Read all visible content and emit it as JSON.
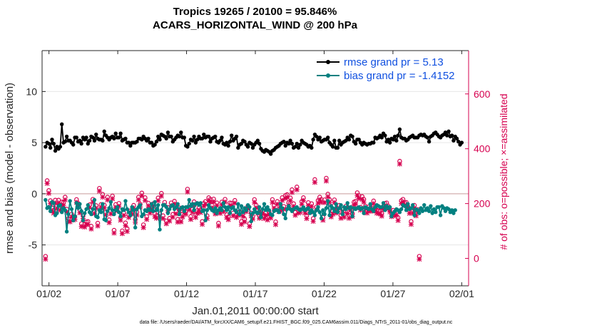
{
  "figure": {
    "title_line1": "Tropics 19265 / 20100 = 95.846%",
    "title_line2": "ACARS_HORIZONTAL_WIND @ 200 hPa",
    "footer": "data file: /Users/raeder/DAI/ATM_forcXX/CAM6_setup/f.e21.FHIST_BGC.f09_025.CAM6assim.011/Diags_NTrS_2011-01/obs_diag_output.nc"
  },
  "chart_data": {
    "type": "line",
    "xlabel": "Jan.01,2011 00:00:00 start",
    "ylabel_left": "rmse and bias (model - observation)",
    "ylabel_right": "# of obs: o=possible; ×=assimilated",
    "xlim_days": [
      0.5,
      31.5
    ],
    "ylim_left": [
      -9,
      14
    ],
    "ylim_right": [
      -100,
      758
    ],
    "x_ticks": [
      {
        "day": 1,
        "label": "01/02"
      },
      {
        "day": 6,
        "label": "01/07"
      },
      {
        "day": 11,
        "label": "01/12"
      },
      {
        "day": 16,
        "label": "01/17"
      },
      {
        "day": 21,
        "label": "01/22"
      },
      {
        "day": 26,
        "label": "01/27"
      },
      {
        "day": 31,
        "label": "02/01"
      }
    ],
    "y_ticks_left": [
      {
        "v": -5,
        "label": "-5"
      },
      {
        "v": 0,
        "label": "0"
      },
      {
        "v": 5,
        "label": "5"
      },
      {
        "v": 10,
        "label": "10"
      }
    ],
    "y_ticks_right": [
      {
        "v": 0,
        "label": "0"
      },
      {
        "v": 200,
        "label": "200"
      },
      {
        "v": 400,
        "label": "400"
      },
      {
        "v": 600,
        "label": "600"
      }
    ],
    "legend": [
      "rmse grand pr = 5.13",
      "bias grand pr = -1.4152"
    ],
    "legend_position": "top-right",
    "colors": {
      "rmse": "#000000",
      "bias": "#008080",
      "obs": "#d6004f",
      "zero_line": "#d4b0b0",
      "legend_text": "#1050e0"
    },
    "series": [
      {
        "name": "rmse",
        "values": [
          4.6,
          5.0,
          4.9,
          4.5,
          5.3,
          4.9,
          4.2,
          4.6,
          4.4,
          4.6,
          6.8,
          5.0,
          5.1,
          5.6,
          5.2,
          5.2,
          5.0,
          4.8,
          5.5,
          5.5,
          5.1,
          5.2,
          4.9,
          5.5,
          5.3,
          5.5,
          4.9,
          5.2,
          5.6,
          5.5,
          5.2,
          5.8,
          5.4,
          5.3,
          5.3,
          5.2,
          6.1,
          5.7,
          5.5,
          5.3,
          5.5,
          5.6,
          5.4,
          5.9,
          5.5,
          5.5,
          5.9,
          5.2,
          5.3,
          5.4,
          5.0,
          5.0,
          4.7,
          5.0,
          5.0,
          5.0,
          5.1,
          5.4,
          5.4,
          5.3,
          5.6,
          5.4,
          5.2,
          5.4,
          5.0,
          5.0,
          4.7,
          4.8,
          5.1,
          5.6,
          5.3,
          5.8,
          5.7,
          5.6,
          5.4,
          6.0,
          5.6,
          5.6,
          5.1,
          5.3,
          5.5,
          5.7,
          5.6,
          6.0,
          5.5,
          5.5,
          4.7,
          4.6,
          4.9,
          5.3,
          5.2,
          5.6,
          5.0,
          5.3,
          5.6,
          5.4,
          5.4,
          5.8,
          5.5,
          5.6,
          5.6,
          5.1,
          5.4,
          5.5,
          5.6,
          5.1,
          5.0,
          5.2,
          5.5,
          4.9,
          4.8,
          5.0,
          4.7,
          5.1,
          5.7,
          5.2,
          5.4,
          5.6,
          4.5,
          4.8,
          4.9,
          5.2,
          5.1,
          4.8,
          4.6,
          5.0,
          4.9,
          4.5,
          4.8,
          5.0,
          5.2,
          4.9,
          4.4,
          4.2,
          4.1,
          4.3,
          4.2,
          4.1,
          3.9,
          4.2,
          4.3,
          4.5,
          4.6,
          4.7,
          4.9,
          5.0,
          5.1,
          4.7,
          5.0,
          4.9,
          5.2,
          4.9,
          4.5,
          4.6,
          4.9,
          4.5,
          4.8,
          5.2,
          5.0,
          4.9,
          4.8,
          4.6,
          4.7,
          4.5,
          5.3,
          5.8,
          5.6,
          5.3,
          5.5,
          5.1,
          5.2,
          5.3,
          5.3,
          5.5,
          5.0,
          4.8,
          4.6,
          5.2,
          4.5,
          4.5,
          5.2,
          4.8,
          5.0,
          5.1,
          5.2,
          5.5,
          5.3,
          5.7,
          5.6,
          5.1,
          4.9,
          5.3,
          5.3,
          5.0,
          4.8,
          5.0,
          4.9,
          4.8,
          4.9,
          4.9,
          5.0,
          5.0,
          5.5,
          5.4,
          5.5,
          5.7,
          5.5,
          5.9,
          5.7,
          5.1,
          5.3,
          5.0,
          5.4,
          5.3,
          5.6,
          5.2,
          5.7,
          6.3,
          5.5,
          5.4,
          5.4,
          5.2,
          5.3,
          5.5,
          5.6,
          5.7,
          5.5,
          5.5,
          5.5,
          5.7,
          5.8,
          5.7,
          5.8,
          5.6,
          5.5,
          5.1,
          5.6,
          5.7,
          5.9,
          6.0,
          5.8,
          5.6,
          5.5,
          5.7,
          5.8,
          6.0,
          5.7,
          6.1,
          5.6,
          5.7,
          5.2,
          5.6,
          5.4,
          5.1,
          4.8,
          5.0
        ]
      },
      {
        "name": "bias",
        "values": [
          -0.6,
          -1.4,
          -1.3,
          -1.7,
          -0.8,
          -0.9,
          -2.1,
          -1.9,
          -1.2,
          -1.1,
          -1.8,
          -1.4,
          -1.6,
          -3.7,
          -2.0,
          -0.7,
          -1.5,
          -2.6,
          -2.2,
          -0.9,
          -1.4,
          -1.0,
          -1.7,
          -2.6,
          -1.9,
          -1.5,
          -1.1,
          -1.8,
          -2.0,
          -1.5,
          -0.6,
          -2.2,
          -2.3,
          -1.6,
          -1.8,
          -1.0,
          -2.5,
          -2.6,
          -1.7,
          -1.4,
          -0.8,
          -1.6,
          -2.0,
          -1.6,
          -1.3,
          -1.8,
          -2.2,
          -1.5,
          -1.6,
          -0.7,
          -1.5,
          -1.8,
          -2.1,
          -1.3,
          -1.6,
          -3.3,
          -1.5,
          -1.3,
          -1.1,
          -2.2,
          -2.0,
          -1.6,
          -1.7,
          -1.5,
          -1.6,
          -1.0,
          -1.7,
          -0.8,
          -1.6,
          -1.1,
          -3.5,
          -1.6,
          -1.1,
          -1.1,
          -1.3,
          -1.9,
          -1.5,
          -1.2,
          -1.1,
          -1.5,
          -1.3,
          -1.0,
          -2.0,
          -1.4,
          -1.3,
          -1.7,
          -1.3,
          -1.3,
          -0.6,
          -1.2,
          -1.0,
          -1.6,
          -1.0,
          -0.9,
          -1.1,
          -0.9,
          -1.7,
          -1.6,
          -2.6,
          -1.6,
          -1.1,
          -1.4,
          -1.6,
          -1.7,
          -1.4,
          -1.9,
          -1.6,
          -1.4,
          -1.6,
          -0.9,
          -1.3,
          -1.6,
          -1.3,
          -1.9,
          -1.4,
          -1.3,
          -1.6,
          -1.8,
          -1.0,
          -2.0,
          -1.2,
          -1.8,
          -1.4,
          -1.6,
          -1.1,
          -1.3,
          -2.7,
          -1.9,
          -1.5,
          -1.8,
          -1.9,
          -1.3,
          -2.3,
          -1.5,
          -1.0,
          -1.6,
          -1.3,
          -1.6,
          -2.0,
          -2.1,
          -1.7,
          -1.6,
          -1.6,
          -1.8,
          -1.0,
          -1.4,
          -2.0,
          -2.4,
          -1.5,
          -1.2,
          -1.5,
          -1.7,
          -1.5,
          -1.4,
          -1.3,
          -1.5,
          -1.6,
          -1.5,
          -1.3,
          -1.6,
          -1.5,
          -1.4,
          -1.9,
          -1.6,
          -1.8,
          -2.1,
          -1.6,
          -1.3,
          -1.8,
          -2.4,
          -1.6,
          -2.0,
          -1.4,
          -0.7,
          -2.1,
          -1.2,
          -1.4,
          -1.7,
          -1.0,
          -1.8,
          -1.4,
          -1.1,
          -2.0,
          -1.3,
          -1.5,
          -0.9,
          -1.4,
          -1.3,
          -2.2,
          -1.4,
          -1.5,
          -1.4,
          -1.3,
          -1.5,
          -1.4,
          -1.9,
          -1.3,
          -1.4,
          -1.5,
          -1.0,
          -1.5,
          -1.7,
          -1.3,
          -1.1,
          -1.2,
          -1.3,
          -1.3,
          -0.9,
          -1.6,
          -1.2,
          -1.4,
          -1.3,
          -2.2,
          -1.9,
          -1.7,
          -1.5,
          -1.6,
          -1.8,
          -1.5,
          -1.1,
          -1.2,
          -1.6,
          -1.0,
          -1.5,
          -1.4,
          -1.1,
          -2.1,
          -1.5,
          -1.6,
          -1.9,
          -1.4,
          -1.7,
          -1.1,
          -1.6,
          -1.4,
          -1.7,
          -1.2,
          -1.9,
          -1.5,
          -1.8,
          -1.3,
          -1.3,
          -2.1,
          -1.2,
          -1.4,
          -1.7,
          -1.4,
          -1.5,
          -1.8,
          -1.6,
          -1.9,
          -1.6
        ]
      },
      {
        "name": "obs_possible",
        "values": [
          0,
          276,
          240,
          203,
          176,
          168,
          205,
          184,
          205,
          178,
          198,
          196,
          216,
          172,
          138,
          136,
          154,
          143,
          145,
          207,
          193,
          169,
          119,
          148,
          117,
          126,
          127,
          188,
          110,
          208,
          166,
          185,
          121,
          248,
          189,
          226,
          187,
          161,
          216,
          133,
          165,
          220,
          95,
          189,
          176,
          193,
          142,
          93,
          159,
          122,
          101,
          152,
          166,
          164,
          186,
          135,
          161,
          216,
          190,
          231,
          115,
          214,
          145,
          194,
          168,
          179,
          192,
          155,
          149,
          213,
          155,
          230,
          148,
          197,
          129,
          178,
          139,
          195,
          153,
          201,
          165,
          135,
          177,
          136,
          154,
          170,
          164,
          245,
          180,
          145,
          171,
          199,
          152,
          167,
          177,
          170,
          127,
          193,
          200,
          148,
          214,
          208,
          187,
          209,
          165,
          195,
          121,
          167,
          198,
          173,
          208,
          152,
          144,
          195,
          194,
          158,
          204,
          152,
          160,
          163,
          127,
          156,
          136,
          173,
          184,
          119,
          158,
          146,
          207,
          187,
          167,
          149,
          162,
          167,
          148,
          159,
          143,
          163,
          150,
          207,
          186,
          126,
          200,
          173,
          175,
          214,
          182,
          222,
          225,
          196,
          213,
          243,
          192,
          160,
          253,
          168,
          171,
          200,
          214,
          168,
          148,
          196,
          171,
          192,
          138,
          280,
          180,
          204,
          216,
          207,
          142,
          206,
          285,
          227,
          207,
          154,
          164,
          206,
          168,
          174,
          186,
          149,
          171,
          153,
          183,
          166,
          149,
          178,
          156,
          198,
          201,
          232,
          221,
          179,
          218,
          208,
          183,
          168,
          180,
          175,
          175,
          202,
          176,
          168,
          166,
          165,
          157,
          182,
          193,
          195,
          183,
          172,
          155,
          168,
          158,
          160,
          141,
          347,
          203,
          208,
          196,
          197,
          182,
          167,
          127,
          167,
          186,
          158,
          171,
          0
        ]
      },
      {
        "name": "obs_assimilated",
        "values": [
          0,
          276,
          240,
          203,
          176,
          168,
          205,
          184,
          205,
          178,
          198,
          196,
          216,
          172,
          138,
          136,
          154,
          143,
          145,
          207,
          193,
          169,
          119,
          148,
          117,
          126,
          127,
          188,
          110,
          208,
          166,
          185,
          121,
          248,
          189,
          226,
          187,
          161,
          216,
          133,
          165,
          220,
          95,
          189,
          176,
          193,
          142,
          93,
          159,
          122,
          101,
          152,
          166,
          164,
          186,
          135,
          161,
          216,
          190,
          231,
          115,
          214,
          145,
          194,
          168,
          179,
          192,
          155,
          149,
          213,
          155,
          230,
          148,
          197,
          129,
          178,
          139,
          195,
          153,
          201,
          165,
          135,
          177,
          136,
          154,
          170,
          164,
          245,
          180,
          145,
          171,
          199,
          152,
          167,
          177,
          170,
          127,
          193,
          200,
          148,
          214,
          208,
          187,
          209,
          165,
          195,
          121,
          167,
          198,
          173,
          208,
          152,
          144,
          195,
          194,
          158,
          204,
          152,
          160,
          163,
          127,
          156,
          136,
          173,
          184,
          119,
          158,
          146,
          207,
          187,
          167,
          149,
          162,
          167,
          148,
          159,
          143,
          163,
          150,
          207,
          186,
          126,
          200,
          173,
          175,
          214,
          182,
          222,
          225,
          196,
          213,
          243,
          192,
          160,
          253,
          168,
          171,
          200,
          214,
          168,
          148,
          196,
          171,
          192,
          138,
          280,
          180,
          204,
          216,
          207,
          142,
          206,
          285,
          227,
          207,
          154,
          164,
          206,
          168,
          174,
          186,
          149,
          171,
          153,
          183,
          166,
          149,
          178,
          156,
          198,
          201,
          232,
          221,
          179,
          218,
          208,
          183,
          168,
          180,
          175,
          175,
          202,
          176,
          168,
          166,
          165,
          157,
          182,
          193,
          195,
          183,
          172,
          155,
          168,
          158,
          160,
          141,
          347,
          203,
          208,
          196,
          197,
          182,
          167,
          127,
          167,
          186,
          158,
          171,
          0
        ]
      }
    ]
  }
}
